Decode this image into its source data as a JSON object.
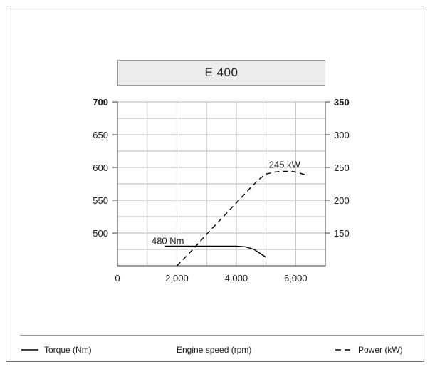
{
  "chart_data": {
    "type": "line",
    "title": "E 400",
    "x": {
      "label": "Engine speed (rpm)",
      "range": [
        0,
        7000
      ],
      "ticks": [
        0,
        2000,
        4000,
        6000
      ],
      "tick_labels": [
        "0",
        "2,000",
        "4,000",
        "6,000"
      ]
    },
    "y_left": {
      "range": [
        450,
        700
      ],
      "ticks": [
        500,
        550,
        600,
        650,
        700
      ],
      "tick_labels": [
        "500",
        "550",
        "600",
        "650",
        "700"
      ]
    },
    "y_right": {
      "range": [
        100,
        350
      ],
      "ticks": [
        150,
        200,
        250,
        300,
        350
      ],
      "tick_labels": [
        "150",
        "200",
        "250",
        "300",
        "350"
      ]
    },
    "grid": true,
    "series": [
      {
        "name": "Torque (Nm)",
        "axis": "left",
        "style": "solid",
        "points": [
          [
            1600,
            480
          ],
          [
            2000,
            480
          ],
          [
            3000,
            480
          ],
          [
            4000,
            480
          ],
          [
            4300,
            479
          ],
          [
            4600,
            475
          ],
          [
            4800,
            469
          ],
          [
            5000,
            463
          ]
        ]
      },
      {
        "name": "Power (kW)",
        "axis": "right",
        "style": "dashed",
        "points": [
          [
            2000,
            100
          ],
          [
            2500,
            123
          ],
          [
            3000,
            148
          ],
          [
            3500,
            172
          ],
          [
            4000,
            196
          ],
          [
            4500,
            220
          ],
          [
            4800,
            233
          ],
          [
            5000,
            240
          ],
          [
            5300,
            243
          ],
          [
            5500,
            244
          ],
          [
            5900,
            244
          ],
          [
            6100,
            242
          ],
          [
            6300,
            239
          ]
        ]
      }
    ],
    "annotations": [
      {
        "text": "480 Nm"
      },
      {
        "text": "245 kW"
      }
    ],
    "legend_position": "bottom"
  },
  "legend": {
    "torque": "Torque (Nm)",
    "engine_speed": "Engine speed (rpm)",
    "power": "Power (kW)"
  }
}
